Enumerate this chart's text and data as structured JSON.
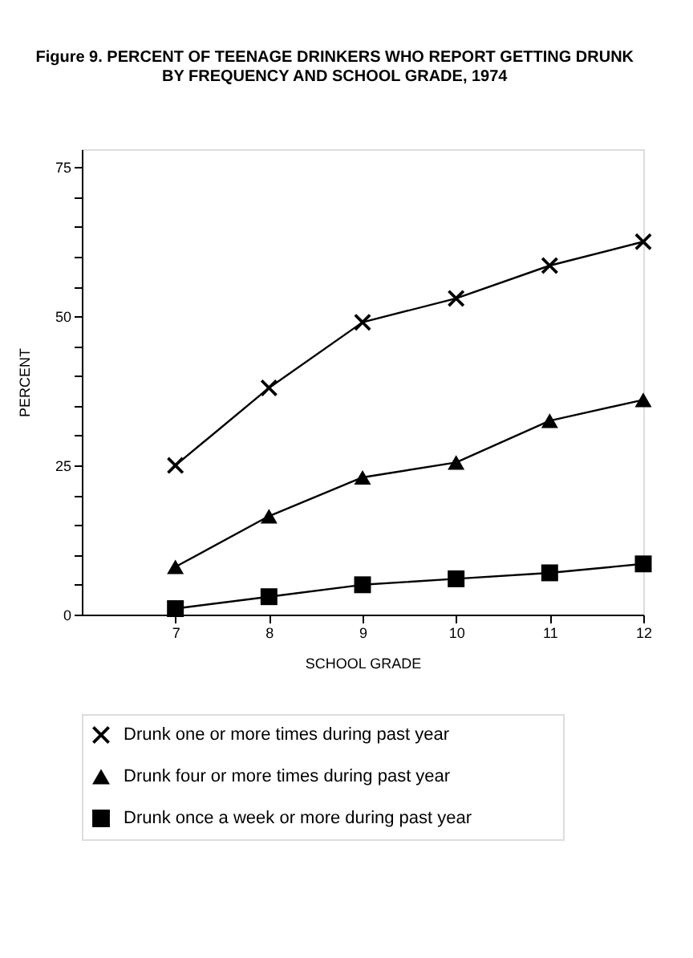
{
  "chart_data": {
    "type": "line",
    "title": "Figure 9. PERCENT OF TEENAGE DRINKERS WHO REPORT GETTING DRUNK\nBY FREQUENCY AND SCHOOL GRADE, 1974",
    "xlabel": "SCHOOL GRADE",
    "ylabel": "PERCENT",
    "x": [
      7,
      8,
      9,
      10,
      11,
      12
    ],
    "series": [
      {
        "name": "Drunk one or more times during past year",
        "color": "#000000",
        "marker": "cross",
        "values": [
          25,
          38,
          49,
          53,
          58.5,
          62.5
        ]
      },
      {
        "name": "Drunk four or more times during past year",
        "color": "#000000",
        "marker": "triangle",
        "values": [
          8,
          16.5,
          23,
          25.5,
          32.5,
          36
        ]
      },
      {
        "name": "Drunk once a week or more during past year",
        "color": "#000000",
        "marker": "square",
        "values": [
          1,
          3,
          5,
          6,
          7,
          8.5
        ]
      }
    ],
    "xlim": [
      6,
      12
    ],
    "xticks": [
      7,
      8,
      9,
      10,
      11,
      12
    ],
    "ylim": [
      0,
      78
    ],
    "yticks": [
      0,
      {
        "value": 5,
        "label": null
      },
      {
        "value": 10,
        "label": null
      },
      {
        "value": 15,
        "label": null
      },
      {
        "value": 20,
        "label": null
      },
      25,
      {
        "value": 30,
        "label": null
      },
      {
        "value": 35,
        "label": null
      },
      {
        "value": 40,
        "label": null
      },
      {
        "value": 45,
        "label": null
      },
      50,
      {
        "value": 55,
        "label": null
      },
      {
        "value": 60,
        "label": null
      },
      {
        "value": 65,
        "label": null
      },
      {
        "value": 70,
        "label": null
      },
      75
    ],
    "grid": false,
    "legend": "bottom",
    "line_style": "solid"
  }
}
